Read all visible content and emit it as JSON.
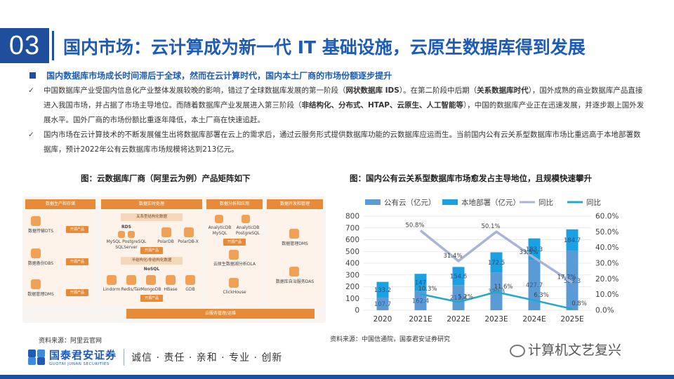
{
  "header": {
    "section_number": "03",
    "title": "国内市场：云计算成为新一代 IT 基础设施，云原生数据库得到发展"
  },
  "body": {
    "lead": "国内数据库市场成长时间滞后于全球，然而在云计算时代，国内本土厂商的市场份额逐步提升",
    "bullets": [
      {
        "parts": [
          {
            "t": "中国数据库产业受国内信息化产业整体发展较晚的影响，错过了全球数据库发展的第一阶段（"
          },
          {
            "t": "网状数据库 IDS",
            "b": true
          },
          {
            "t": "）。在第二阶段中后期（"
          },
          {
            "t": "关系数据库时代",
            "b": true
          },
          {
            "t": "），国外成熟的商业数据库产品直接进入我国市场，并占据了市场主导地位。而随着数据库产业发展进入第三阶段（"
          },
          {
            "t": "非结构化、分布式、HTAP、云原生、人工智能等",
            "b": true
          },
          {
            "t": "），中国的数据库产业正在迅速发展，并逐步跟上国外发展水平。国外厂商的市场份额比重逐年降低，本土厂商在快速追赶。"
          }
        ]
      },
      {
        "parts": [
          {
            "t": "国内市场在云计算技术的不断发展催生出将数据库部署在云上的需求后，通过云服务形式提供数据库功能的云数据库应运而生。当前国内公有云关系型数据库市场比重远高于本地部署数据库，预计2022年公有云数据库市场规模将达到213亿元。"
          }
        ]
      }
    ]
  },
  "left_figure": {
    "caption": "图：云数据库厂商（阿里云为例）产品矩阵如下",
    "source": "资料来源：阿里云官网",
    "columns": [
      "数据生产和存储",
      "数据实时处理",
      "数据分析和应用",
      "数据开发和管理"
    ],
    "col1_items": [
      "数据传输DTS",
      "数据备份DBS",
      "数据管理DMS"
    ],
    "relational_group": "关系型结构化数据",
    "nonrelational_group": "半结构化/非结构化数据",
    "rds_label": "RDS",
    "rds_engines": "MySQL PostgreSQL SQLServer",
    "polardb": [
      "PolarDB",
      "PolarDB-X"
    ],
    "nosql_label": "NoSQL",
    "nosql_items": [
      "Lindorm",
      "Redis/Tair",
      "MongoDB",
      "HBase",
      "GDB"
    ],
    "col3_items": [
      "AnalyticDB MySQL",
      "AnalyticDB PostgreSQL",
      "云原生数据湖分析DLA",
      "ClickHouse"
    ],
    "col4_items": [
      "数据管理DMS",
      "数据库自治服务DAS"
    ],
    "tag_label": "开源产品",
    "footer_bar": "云服务管理/运维"
  },
  "right_figure": {
    "caption": "图：国内公有云关系型数据库市场愈发占主导地位，且规模快速攀升",
    "source": "资料来源：中国信通院，国泰君安证券研究",
    "colors": {
      "public": "#5b9bd5",
      "onprem": "#1ba1e2",
      "yoy_public": "#a7b4d8",
      "yoy_onprem": "#22a9c9"
    }
  },
  "chart_data": {
    "type": "bar",
    "categories": [
      "2020",
      "2021E",
      "2022E",
      "2023E",
      "2024E",
      "2025E"
    ],
    "series": [
      {
        "name": "公有云（亿元）",
        "kind": "bar",
        "axis": "left",
        "values": [
          107.7,
          162.4,
          213.4,
          320.3,
          427.7,
          503.3
        ]
      },
      {
        "name": "本地部署（亿元）",
        "kind": "bar",
        "axis": "left",
        "values": [
          133.2,
          147.0,
          154.6,
          172.5,
          183.3,
          184.7
        ]
      },
      {
        "name": "同比",
        "kind": "line",
        "axis": "right",
        "values": [
          null,
          50.8,
          31.4,
          50.1,
          33.5,
          17.7
        ]
      },
      {
        "name": "同比",
        "kind": "line",
        "axis": "right",
        "values": [
          null,
          10.3,
          5.2,
          11.6,
          6.3,
          0.8
        ]
      }
    ],
    "left_ticks": [
      "0",
      "100",
      "200",
      "300",
      "400",
      "500",
      "600",
      "700",
      "800"
    ],
    "right_ticks": [
      "0.0%",
      "10.0%",
      "20.0%",
      "30.0%",
      "40.0%",
      "50.0%",
      "60.0%"
    ],
    "ylim": [
      0,
      800
    ],
    "y2lim": [
      0,
      60
    ],
    "legend_position": "top"
  },
  "footer": {
    "brand_cn": "国泰君安证券",
    "brand_en": "GUOTAI JUNAN SECURITIES",
    "motto": "诚信 · 责任 · 亲和 · 专业 · 创新",
    "wechat": "计算机文艺复兴"
  }
}
